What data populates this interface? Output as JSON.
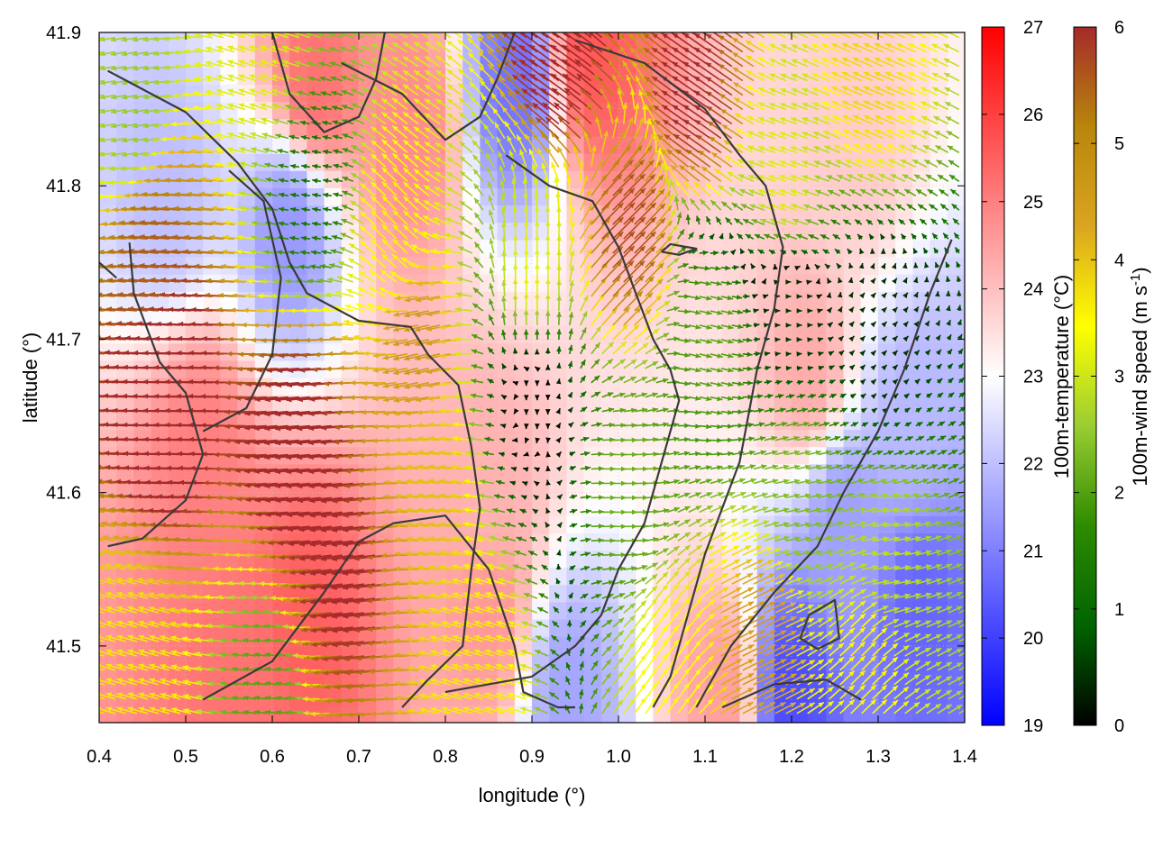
{
  "chart_data": {
    "type": "heatmap",
    "title": "",
    "xlabel": "longitude (°)",
    "ylabel": "latitude (°)",
    "xlim": [
      0.4,
      1.4
    ],
    "ylim": [
      41.45,
      41.9
    ],
    "x_ticks": [
      "0.4",
      "0.5",
      "0.6",
      "0.7",
      "0.8",
      "0.9",
      "1.0",
      "1.1",
      "1.2",
      "1.3",
      "1.4"
    ],
    "y_ticks": [
      "41.5",
      "41.6",
      "41.7",
      "41.8",
      "41.9"
    ],
    "field": {
      "name": "100m-temperature",
      "colorbar_label": "100m-temperature (°C)",
      "range": [
        19,
        27
      ],
      "ticks": [
        "19",
        "20",
        "21",
        "22",
        "23",
        "24",
        "25",
        "26",
        "27"
      ],
      "colors": [
        "#0000ff",
        "#ffffff",
        "#ff0000"
      ]
    },
    "vectors": {
      "name": "100m-wind speed",
      "colorbar_label_main": "100m-wind speed (m s",
      "colorbar_label_exp": "-1",
      "colorbar_label_end": ")",
      "range": [
        0,
        6
      ],
      "ticks": [
        "0",
        "1",
        "2",
        "3",
        "4",
        "5",
        "6"
      ],
      "colors": [
        "#000000",
        "#006400",
        "#2e8b00",
        "#9acd32",
        "#ffff00",
        "#daa520",
        "#b8860b",
        "#a52a2a"
      ]
    },
    "temperature_features": [
      {
        "lon": 0.65,
        "lat": 41.87,
        "value": 25.2
      },
      {
        "lon": 0.97,
        "lat": 41.89,
        "value": 25.6
      },
      {
        "lon": 0.76,
        "lat": 41.84,
        "value": 24.8
      },
      {
        "lon": 0.52,
        "lat": 41.62,
        "value": 25.0
      },
      {
        "lon": 0.64,
        "lat": 41.52,
        "value": 25.5
      },
      {
        "lon": 0.56,
        "lat": 41.48,
        "value": 25.2
      },
      {
        "lon": 0.85,
        "lat": 41.52,
        "value": 24.6
      },
      {
        "lon": 0.85,
        "lat": 41.6,
        "value": 24.2
      },
      {
        "lon": 1.22,
        "lat": 41.68,
        "value": 24.3
      },
      {
        "lon": 1.12,
        "lat": 41.47,
        "value": 24.5
      },
      {
        "lon": 1.28,
        "lat": 41.82,
        "value": 23.8
      },
      {
        "lon": 0.62,
        "lat": 41.77,
        "value": 21.4
      },
      {
        "lon": 0.48,
        "lat": 41.8,
        "value": 22.0
      },
      {
        "lon": 0.88,
        "lat": 41.87,
        "value": 20.8
      },
      {
        "lon": 1.2,
        "lat": 41.47,
        "value": 20.2
      },
      {
        "lon": 1.35,
        "lat": 41.52,
        "value": 20.6
      },
      {
        "lon": 1.26,
        "lat": 41.58,
        "value": 21.5
      },
      {
        "lon": 0.94,
        "lat": 41.47,
        "value": 21.6
      },
      {
        "lon": 1.34,
        "lat": 41.65,
        "value": 21.9
      }
    ],
    "wind_features": [
      {
        "lon": 0.5,
        "lat": 41.67,
        "u": -7.0,
        "v": 0.2
      },
      {
        "lon": 0.65,
        "lat": 41.63,
        "u": -6.5,
        "v": -0.6
      },
      {
        "lon": 0.7,
        "lat": 41.55,
        "u": -6.0,
        "v": -0.8
      },
      {
        "lon": 0.78,
        "lat": 41.7,
        "u": -4.5,
        "v": -1.0
      },
      {
        "lon": 0.75,
        "lat": 41.77,
        "u": -2.5,
        "v": 2.5
      },
      {
        "lon": 0.65,
        "lat": 41.8,
        "u": -1.2,
        "v": 0.2
      },
      {
        "lon": 0.6,
        "lat": 41.88,
        "u": -3.0,
        "v": 1.0
      },
      {
        "lon": 0.9,
        "lat": 41.66,
        "u": 0.0,
        "v": -0.1
      },
      {
        "lon": 0.9,
        "lat": 41.74,
        "u": 0.0,
        "v": 3.2
      },
      {
        "lon": 0.8,
        "lat": 41.6,
        "u": -4.0,
        "v": 0.5
      },
      {
        "lon": 1.0,
        "lat": 41.77,
        "u": 4.0,
        "v": 4.0
      },
      {
        "lon": 1.0,
        "lat": 41.6,
        "u": 2.2,
        "v": 0.0
      },
      {
        "lon": 1.1,
        "lat": 41.7,
        "u": 2.0,
        "v": -0.5
      },
      {
        "lon": 1.2,
        "lat": 41.72,
        "u": 0.5,
        "v": 0.0
      },
      {
        "lon": 1.3,
        "lat": 41.7,
        "u": 0.3,
        "v": 0.3
      },
      {
        "lon": 1.2,
        "lat": 41.6,
        "u": 2.3,
        "v": 0.5
      },
      {
        "lon": 1.3,
        "lat": 41.55,
        "u": 2.8,
        "v": 0.5
      },
      {
        "lon": 1.2,
        "lat": 41.8,
        "u": -3.0,
        "v": 1.0
      },
      {
        "lon": 1.3,
        "lat": 41.87,
        "u": -3.5,
        "v": 1.5
      },
      {
        "lon": 1.1,
        "lat": 41.86,
        "u": -5.0,
        "v": 3.5
      },
      {
        "lon": 0.95,
        "lat": 41.88,
        "u": -5.5,
        "v": 4.0
      },
      {
        "lon": 1.15,
        "lat": 41.5,
        "u": 4.0,
        "v": 2.0
      },
      {
        "lon": 1.28,
        "lat": 41.49,
        "u": 2.5,
        "v": 2.5
      },
      {
        "lon": 1.05,
        "lat": 41.48,
        "u": 2.0,
        "v": 2.8
      },
      {
        "lon": 0.85,
        "lat": 41.49,
        "u": -3.5,
        "v": 1.0
      },
      {
        "lon": 0.6,
        "lat": 41.47,
        "u": -2.0,
        "v": 0.3
      },
      {
        "lon": 0.45,
        "lat": 41.48,
        "u": -3.5,
        "v": 1.0
      },
      {
        "lon": 0.45,
        "lat": 41.85,
        "u": -2.5,
        "v": -0.5
      },
      {
        "lon": 0.48,
        "lat": 41.75,
        "u": -5.5,
        "v": 0.5
      }
    ],
    "contours": [
      [
        [
          0.41,
          41.875
        ],
        [
          0.5,
          41.848
        ],
        [
          0.56,
          41.815
        ],
        [
          0.6,
          41.785
        ],
        [
          0.62,
          41.75
        ],
        [
          0.64,
          41.73
        ],
        [
          0.7,
          41.712
        ],
        [
          0.76,
          41.708
        ],
        [
          0.78,
          41.69
        ],
        [
          0.815,
          41.67
        ],
        [
          0.83,
          41.63
        ],
        [
          0.84,
          41.59
        ],
        [
          0.83,
          41.55
        ],
        [
          0.82,
          41.5
        ],
        [
          0.78,
          41.478
        ],
        [
          0.75,
          41.46
        ]
      ],
      [
        [
          0.435,
          41.763
        ],
        [
          0.44,
          41.73
        ],
        [
          0.47,
          41.685
        ],
        [
          0.5,
          41.665
        ],
        [
          0.52,
          41.625
        ],
        [
          0.5,
          41.595
        ],
        [
          0.45,
          41.57
        ],
        [
          0.41,
          41.565
        ]
      ],
      [
        [
          0.52,
          41.465
        ],
        [
          0.6,
          41.49
        ],
        [
          0.66,
          41.535
        ],
        [
          0.7,
          41.568
        ],
        [
          0.74,
          41.58
        ],
        [
          0.8,
          41.585
        ],
        [
          0.85,
          41.55
        ],
        [
          0.88,
          41.5
        ],
        [
          0.89,
          41.47
        ],
        [
          0.93,
          41.46
        ],
        [
          0.95,
          41.46
        ]
      ],
      [
        [
          0.55,
          41.81
        ],
        [
          0.59,
          41.79
        ],
        [
          0.61,
          41.74
        ],
        [
          0.6,
          41.69
        ],
        [
          0.57,
          41.655
        ],
        [
          0.52,
          41.64
        ]
      ],
      [
        [
          0.68,
          41.88
        ],
        [
          0.75,
          41.86
        ],
        [
          0.8,
          41.83
        ],
        [
          0.84,
          41.845
        ],
        [
          0.86,
          41.87
        ],
        [
          0.88,
          41.9
        ]
      ],
      [
        [
          0.87,
          41.82
        ],
        [
          0.92,
          41.8
        ],
        [
          0.97,
          41.79
        ],
        [
          1.0,
          41.76
        ],
        [
          1.02,
          41.73
        ],
        [
          1.04,
          41.7
        ],
        [
          1.06,
          41.68
        ],
        [
          1.07,
          41.66
        ],
        [
          1.05,
          41.62
        ],
        [
          1.03,
          41.58
        ],
        [
          1.0,
          41.55
        ],
        [
          0.98,
          41.52
        ],
        [
          0.95,
          41.5
        ],
        [
          0.9,
          41.48
        ],
        [
          0.85,
          41.475
        ],
        [
          0.8,
          41.47
        ]
      ],
      [
        [
          0.95,
          41.895
        ],
        [
          1.03,
          41.88
        ],
        [
          1.1,
          41.85
        ],
        [
          1.14,
          41.82
        ],
        [
          1.17,
          41.8
        ],
        [
          1.19,
          41.76
        ],
        [
          1.18,
          41.72
        ],
        [
          1.16,
          41.68
        ],
        [
          1.14,
          41.62
        ],
        [
          1.1,
          41.56
        ],
        [
          1.08,
          41.52
        ],
        [
          1.06,
          41.48
        ],
        [
          1.04,
          41.46
        ]
      ],
      [
        [
          1.09,
          41.46
        ],
        [
          1.13,
          41.5
        ],
        [
          1.18,
          41.535
        ],
        [
          1.23,
          41.565
        ],
        [
          1.26,
          41.6
        ],
        [
          1.3,
          41.64
        ],
        [
          1.33,
          41.68
        ],
        [
          1.36,
          41.73
        ],
        [
          1.385,
          41.765
        ]
      ],
      [
        [
          1.05,
          41.757
        ],
        [
          1.07,
          41.755
        ],
        [
          1.09,
          41.759
        ],
        [
          1.06,
          41.762
        ],
        [
          1.05,
          41.757
        ]
      ],
      [
        [
          1.22,
          41.52
        ],
        [
          1.25,
          41.53
        ],
        [
          1.255,
          41.505
        ],
        [
          1.23,
          41.498
        ],
        [
          1.21,
          41.505
        ],
        [
          1.22,
          41.52
        ]
      ],
      [
        [
          1.12,
          41.46
        ],
        [
          1.18,
          41.475
        ],
        [
          1.24,
          41.478
        ],
        [
          1.28,
          41.465
        ]
      ],
      [
        [
          0.4,
          41.75
        ],
        [
          0.42,
          41.74
        ]
      ],
      [
        [
          0.6,
          41.9
        ],
        [
          0.62,
          41.86
        ],
        [
          0.66,
          41.835
        ],
        [
          0.7,
          41.845
        ],
        [
          0.72,
          41.87
        ],
        [
          0.73,
          41.9
        ]
      ]
    ]
  }
}
